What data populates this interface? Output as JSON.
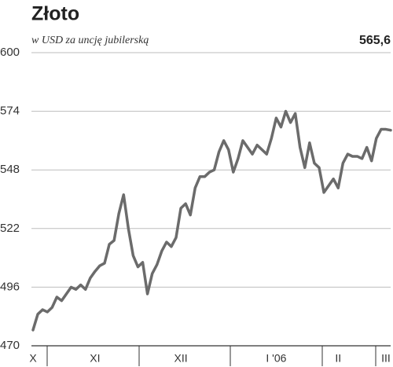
{
  "chart_data": {
    "type": "line",
    "title": "Złoto",
    "subtitle": "w USD za uncję jubilerską",
    "last_value_label": "565,6",
    "color": "#6b6b6b",
    "ylim": [
      470,
      600
    ],
    "yticks": [
      470,
      496,
      522,
      548,
      574,
      600
    ],
    "grid": true,
    "categories": [
      "X",
      null,
      null,
      null,
      null,
      null,
      null,
      null,
      null,
      null,
      null,
      null,
      null,
      "XI",
      null,
      null,
      null,
      null,
      null,
      null,
      null,
      null,
      null,
      null,
      null,
      null,
      null,
      null,
      null,
      null,
      null,
      "XII",
      null,
      null,
      null,
      null,
      null,
      null,
      null,
      null,
      null,
      null,
      null,
      null,
      null,
      null,
      null,
      null,
      null,
      null,
      null,
      "I '06",
      null,
      null,
      null,
      null,
      null,
      null,
      null,
      null,
      null,
      null,
      null,
      null,
      "II",
      null,
      null,
      null,
      null,
      null,
      null,
      null,
      null,
      null,
      "III",
      null
    ],
    "values": [
      477,
      484,
      486,
      485,
      487,
      491.6,
      490,
      493,
      496,
      495,
      497,
      495,
      500,
      503,
      505.5,
      506.6,
      515,
      516.7,
      528.6,
      537,
      522,
      510,
      505,
      507,
      493,
      502,
      506,
      512,
      516,
      514,
      518,
      531,
      533,
      528,
      540,
      545,
      545,
      547,
      548,
      556,
      561,
      557,
      547,
      553,
      561,
      558,
      555,
      559,
      557,
      555,
      562,
      571,
      567,
      574,
      569,
      573,
      558,
      549,
      560,
      551,
      549,
      538,
      541,
      544,
      540,
      551,
      555,
      554,
      554,
      553,
      558,
      552,
      562,
      566,
      566,
      565.6
    ]
  }
}
